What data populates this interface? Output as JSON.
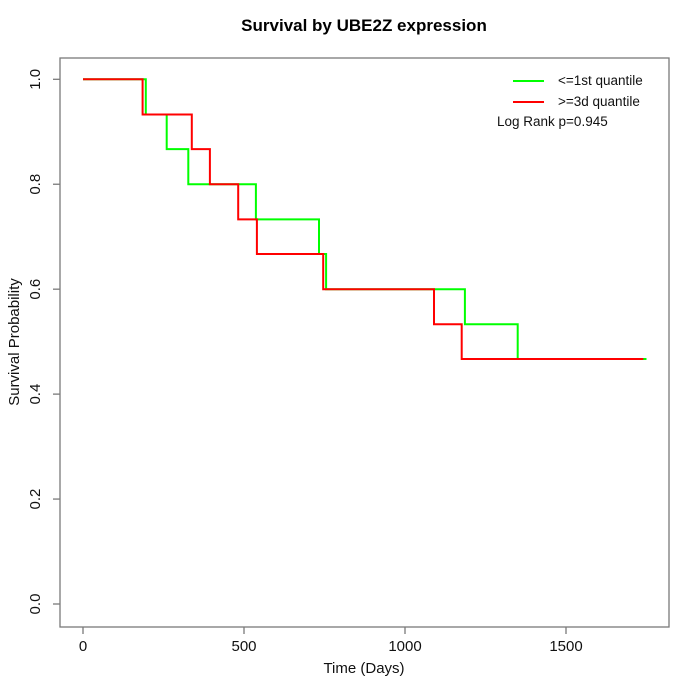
{
  "title": "Survival by UBE2Z expression",
  "xlabel": "Time (Days)",
  "ylabel": "Survival Probability",
  "legend": {
    "items": [
      {
        "label": "<=1st quantile",
        "color": "#00ff00"
      },
      {
        "label": ">=3d quantile",
        "color": "#ff0000"
      }
    ],
    "note": "Log Rank p=0.945"
  },
  "chart_data": {
    "type": "line",
    "subtype": "kaplan-meier-step",
    "title": "Survival by UBE2Z expression",
    "xlabel": "Time (Days)",
    "ylabel": "Survival Probability",
    "xlim": [
      0,
      1820
    ],
    "ylim": [
      0,
      1.04
    ],
    "x_ticks": [
      0,
      500,
      1000,
      1500
    ],
    "y_ticks": [
      0.0,
      0.2,
      0.4,
      0.6,
      0.8,
      1.0
    ],
    "grid": false,
    "legend_position": "top-right",
    "annotation": "Log Rank p=0.945",
    "series": [
      {
        "name": "<=1st quantile",
        "color": "#00ff00",
        "step_points": [
          [
            0,
            1.0
          ],
          [
            195,
            0.933
          ],
          [
            260,
            0.867
          ],
          [
            327,
            0.8
          ],
          [
            537,
            0.733
          ],
          [
            733,
            0.667
          ],
          [
            755,
            0.6
          ],
          [
            1186,
            0.533
          ],
          [
            1350,
            0.467
          ],
          [
            1750,
            0.467
          ]
        ]
      },
      {
        "name": ">=3d quantile",
        "color": "#ff0000",
        "step_points": [
          [
            0,
            1.0
          ],
          [
            185,
            0.933
          ],
          [
            338,
            0.867
          ],
          [
            394,
            0.8
          ],
          [
            482,
            0.733
          ],
          [
            540,
            0.667
          ],
          [
            746,
            0.6
          ],
          [
            1090,
            0.533
          ],
          [
            1176,
            0.467
          ],
          [
            1740,
            0.467
          ]
        ]
      }
    ]
  }
}
